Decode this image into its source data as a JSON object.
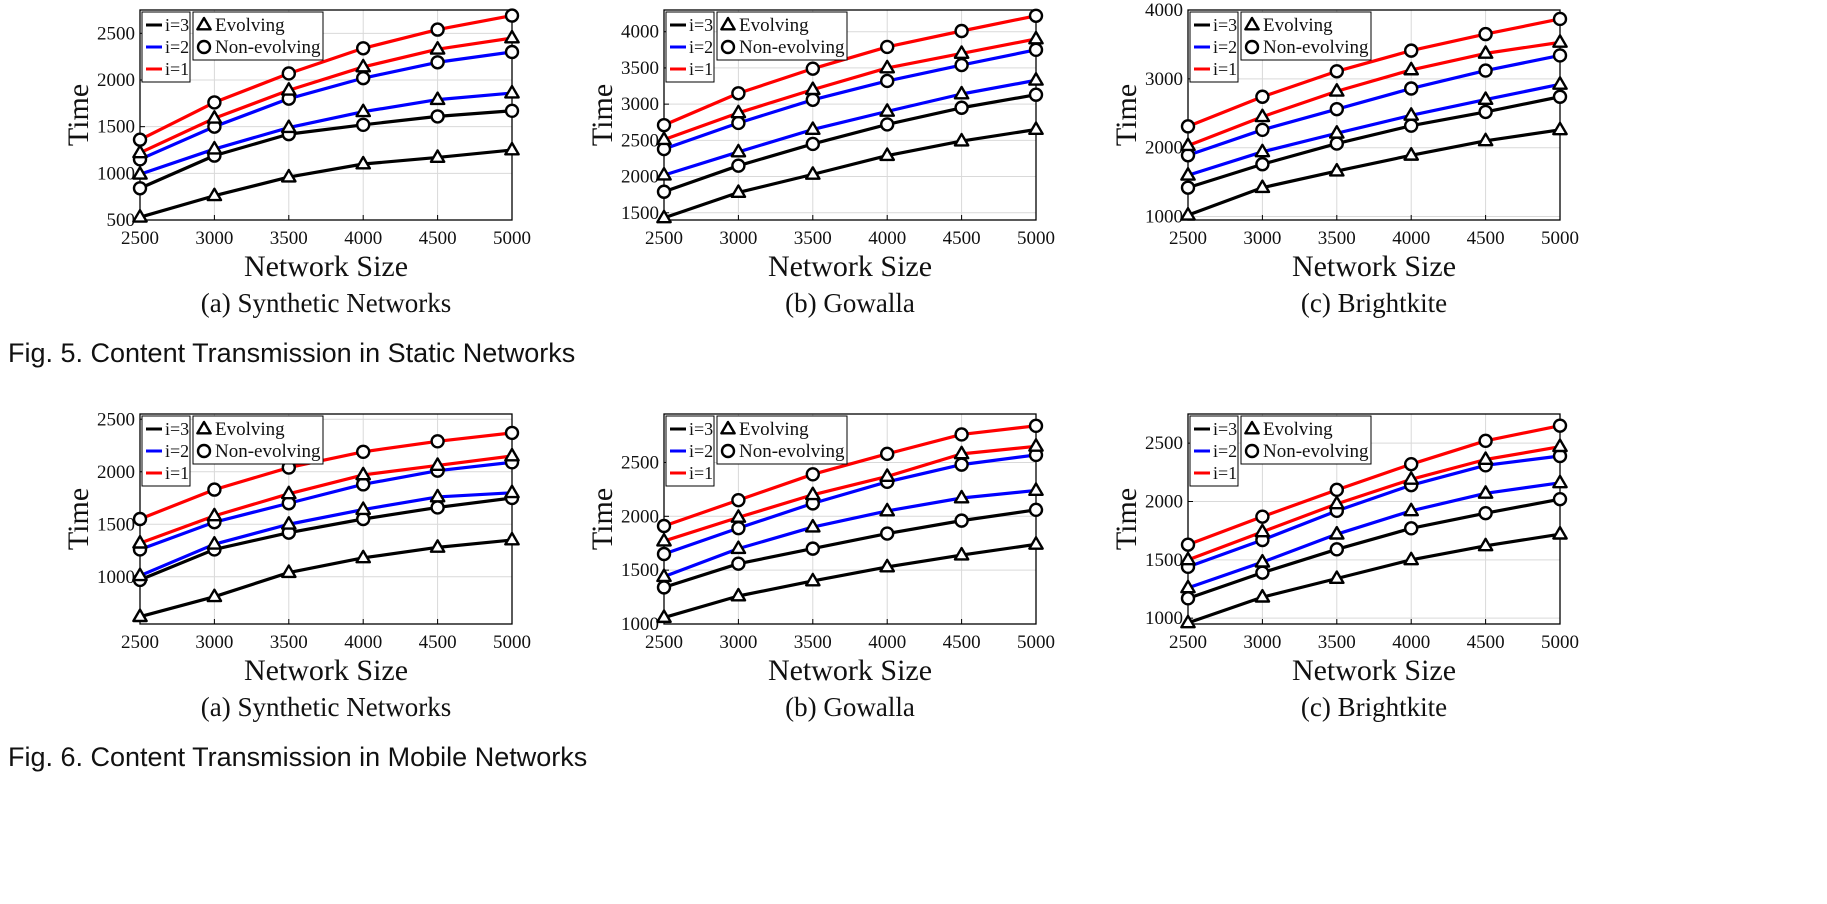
{
  "figures": [
    {
      "caption": "Fig. 5. Content Transmission in Static Networks"
    },
    {
      "caption": "Fig. 6. Content Transmission in Mobile Networks"
    }
  ],
  "colors": {
    "i=3": "#000000",
    "i=2": "#0000ff",
    "i=1": "#ff0000",
    "grid": "#d9d9d9"
  },
  "legend_items": {
    "lines": [
      "i=3",
      "i=2",
      "i=1"
    ],
    "markers": [
      {
        "label": "Evolving",
        "marker": "triangle"
      },
      {
        "label": "Non-evolving",
        "marker": "circle"
      }
    ]
  },
  "chart_data": [
    {
      "type": "line",
      "figure": 0,
      "panel": 0,
      "subcaption": "(a) Synthetic Networks",
      "xlabel": "Network Size",
      "ylabel": "Time",
      "x": [
        2500,
        3000,
        3500,
        4000,
        4500,
        5000
      ],
      "xlim": [
        2500,
        5000
      ],
      "ylim": [
        500,
        2750
      ],
      "yticks": [
        500,
        1000,
        1500,
        2000,
        2500
      ],
      "grid": true,
      "legend": "top-left",
      "series": [
        {
          "name": "i=3",
          "evolving": true,
          "values": [
            530,
            760,
            960,
            1100,
            1170,
            1250
          ]
        },
        {
          "name": "i=3",
          "evolving": false,
          "values": [
            840,
            1190,
            1420,
            1520,
            1610,
            1670
          ]
        },
        {
          "name": "i=2",
          "evolving": true,
          "values": [
            990,
            1260,
            1490,
            1660,
            1790,
            1860
          ]
        },
        {
          "name": "i=2",
          "evolving": false,
          "values": [
            1150,
            1500,
            1800,
            2020,
            2190,
            2300
          ]
        },
        {
          "name": "i=1",
          "evolving": true,
          "values": [
            1220,
            1590,
            1890,
            2140,
            2330,
            2450
          ]
        },
        {
          "name": "i=1",
          "evolving": false,
          "values": [
            1360,
            1760,
            2070,
            2340,
            2540,
            2690
          ]
        }
      ]
    },
    {
      "type": "line",
      "figure": 0,
      "panel": 1,
      "subcaption": "(b) Gowalla",
      "xlabel": "Network Size",
      "ylabel": "Time",
      "x": [
        2500,
        3000,
        3500,
        4000,
        4500,
        5000
      ],
      "xlim": [
        2500,
        5000
      ],
      "ylim": [
        1400,
        4300
      ],
      "yticks": [
        1500,
        2000,
        2500,
        3000,
        3500,
        4000
      ],
      "grid": true,
      "legend": "top-left",
      "series": [
        {
          "name": "i=3",
          "evolving": true,
          "values": [
            1430,
            1780,
            2030,
            2290,
            2490,
            2650
          ]
        },
        {
          "name": "i=3",
          "evolving": false,
          "values": [
            1790,
            2150,
            2450,
            2720,
            2950,
            3130
          ]
        },
        {
          "name": "i=2",
          "evolving": true,
          "values": [
            2020,
            2340,
            2650,
            2900,
            3140,
            3330
          ]
        },
        {
          "name": "i=2",
          "evolving": false,
          "values": [
            2380,
            2740,
            3060,
            3320,
            3540,
            3750
          ]
        },
        {
          "name": "i=1",
          "evolving": true,
          "values": [
            2510,
            2880,
            3200,
            3500,
            3700,
            3900
          ]
        },
        {
          "name": "i=1",
          "evolving": false,
          "values": [
            2710,
            3150,
            3490,
            3790,
            4010,
            4220
          ]
        }
      ]
    },
    {
      "type": "line",
      "figure": 0,
      "panel": 2,
      "subcaption": "(c) Brightkite",
      "xlabel": "Network Size",
      "ylabel": "Time",
      "x": [
        2500,
        3000,
        3500,
        4000,
        4500,
        5000
      ],
      "xlim": [
        2500,
        5000
      ],
      "ylim": [
        950,
        4000
      ],
      "yticks": [
        1000,
        2000,
        3000,
        4000
      ],
      "grid": true,
      "legend": "top-left",
      "series": [
        {
          "name": "i=3",
          "evolving": true,
          "values": [
            1020,
            1420,
            1660,
            1890,
            2100,
            2260
          ]
        },
        {
          "name": "i=3",
          "evolving": false,
          "values": [
            1420,
            1760,
            2060,
            2320,
            2520,
            2740
          ]
        },
        {
          "name": "i=2",
          "evolving": true,
          "values": [
            1600,
            1940,
            2210,
            2470,
            2700,
            2920
          ]
        },
        {
          "name": "i=2",
          "evolving": false,
          "values": [
            1890,
            2260,
            2560,
            2860,
            3120,
            3340
          ]
        },
        {
          "name": "i=1",
          "evolving": true,
          "values": [
            2030,
            2450,
            2820,
            3130,
            3370,
            3530
          ]
        },
        {
          "name": "i=1",
          "evolving": false,
          "values": [
            2310,
            2740,
            3110,
            3410,
            3650,
            3870
          ]
        }
      ]
    },
    {
      "type": "line",
      "figure": 1,
      "panel": 0,
      "subcaption": "(a) Synthetic Networks",
      "xlabel": "Network Size",
      "ylabel": "Time",
      "x": [
        2500,
        3000,
        3500,
        4000,
        4500,
        5000
      ],
      "xlim": [
        2500,
        5000
      ],
      "ylim": [
        550,
        2550
      ],
      "yticks": [
        1000,
        1500,
        2000,
        2500
      ],
      "grid": true,
      "legend": "top-left",
      "series": [
        {
          "name": "i=3",
          "evolving": true,
          "values": [
            620,
            810,
            1040,
            1180,
            1280,
            1350
          ]
        },
        {
          "name": "i=3",
          "evolving": false,
          "values": [
            970,
            1260,
            1420,
            1550,
            1660,
            1750
          ]
        },
        {
          "name": "i=2",
          "evolving": true,
          "values": [
            1010,
            1310,
            1500,
            1640,
            1760,
            1800
          ]
        },
        {
          "name": "i=2",
          "evolving": false,
          "values": [
            1260,
            1520,
            1700,
            1880,
            2010,
            2090
          ]
        },
        {
          "name": "i=1",
          "evolving": true,
          "values": [
            1320,
            1580,
            1790,
            1970,
            2060,
            2150
          ]
        },
        {
          "name": "i=1",
          "evolving": false,
          "values": [
            1550,
            1830,
            2040,
            2190,
            2290,
            2370
          ]
        }
      ]
    },
    {
      "type": "line",
      "figure": 1,
      "panel": 1,
      "subcaption": "(b) Gowalla",
      "xlabel": "Network Size",
      "ylabel": "Time",
      "x": [
        2500,
        3000,
        3500,
        4000,
        4500,
        5000
      ],
      "xlim": [
        2500,
        5000
      ],
      "ylim": [
        1000,
        2950
      ],
      "yticks": [
        1000,
        1500,
        2000,
        2500
      ],
      "grid": true,
      "legend": "top-left",
      "series": [
        {
          "name": "i=3",
          "evolving": true,
          "values": [
            1060,
            1260,
            1400,
            1530,
            1640,
            1740
          ]
        },
        {
          "name": "i=3",
          "evolving": false,
          "values": [
            1340,
            1560,
            1700,
            1840,
            1960,
            2060
          ]
        },
        {
          "name": "i=2",
          "evolving": true,
          "values": [
            1440,
            1700,
            1900,
            2050,
            2170,
            2240
          ]
        },
        {
          "name": "i=2",
          "evolving": false,
          "values": [
            1650,
            1890,
            2120,
            2320,
            2480,
            2570
          ]
        },
        {
          "name": "i=1",
          "evolving": true,
          "values": [
            1770,
            1990,
            2200,
            2370,
            2580,
            2650
          ]
        },
        {
          "name": "i=1",
          "evolving": false,
          "values": [
            1910,
            2150,
            2390,
            2580,
            2760,
            2840
          ]
        }
      ]
    },
    {
      "type": "line",
      "figure": 1,
      "panel": 2,
      "subcaption": "(c) Brightkite",
      "xlabel": "Network Size",
      "ylabel": "Time",
      "x": [
        2500,
        3000,
        3500,
        4000,
        4500,
        5000
      ],
      "xlim": [
        2500,
        5000
      ],
      "ylim": [
        950,
        2750
      ],
      "yticks": [
        1000,
        1500,
        2000,
        2500
      ],
      "grid": true,
      "legend": "top-left",
      "series": [
        {
          "name": "i=3",
          "evolving": true,
          "values": [
            960,
            1180,
            1340,
            1500,
            1620,
            1720
          ]
        },
        {
          "name": "i=3",
          "evolving": false,
          "values": [
            1170,
            1390,
            1590,
            1770,
            1900,
            2020
          ]
        },
        {
          "name": "i=2",
          "evolving": true,
          "values": [
            1260,
            1480,
            1720,
            1920,
            2070,
            2160
          ]
        },
        {
          "name": "i=2",
          "evolving": false,
          "values": [
            1440,
            1670,
            1920,
            2140,
            2310,
            2390
          ]
        },
        {
          "name": "i=1",
          "evolving": true,
          "values": [
            1500,
            1740,
            1980,
            2190,
            2360,
            2470
          ]
        },
        {
          "name": "i=1",
          "evolving": false,
          "values": [
            1630,
            1870,
            2100,
            2320,
            2520,
            2650
          ]
        }
      ]
    }
  ]
}
